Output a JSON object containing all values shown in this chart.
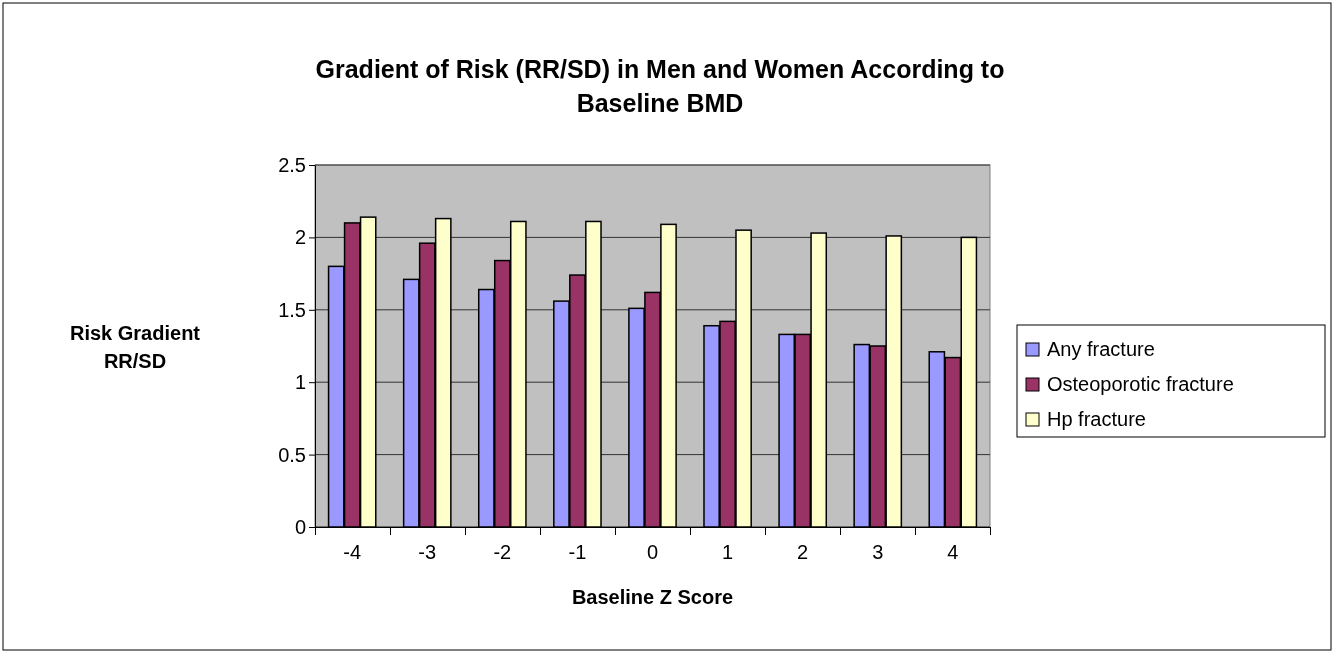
{
  "chart_data": {
    "type": "bar",
    "title": "Gradient of Risk (RR/SD) in Men and Women According to Baseline BMD",
    "xlabel": "Baseline Z Score",
    "ylabel": "Risk Gradient RR/SD",
    "categories": [
      "-4",
      "-3",
      "-2",
      "-1",
      "0",
      "1",
      "2",
      "3",
      "4"
    ],
    "series": [
      {
        "name": "Any fracture",
        "color": "#9999ff",
        "values": [
          1.8,
          1.71,
          1.64,
          1.56,
          1.51,
          1.39,
          1.33,
          1.26,
          1.21
        ]
      },
      {
        "name": "Osteoporotic fracture",
        "color": "#993366",
        "values": [
          2.1,
          1.96,
          1.84,
          1.74,
          1.62,
          1.42,
          1.33,
          1.25,
          1.17
        ]
      },
      {
        "name": "Hp fracture",
        "color": "#ffffcc",
        "values": [
          2.14,
          2.13,
          2.11,
          2.11,
          2.09,
          2.05,
          2.03,
          2.01,
          2.0
        ]
      }
    ],
    "ylim": [
      0,
      2.5
    ],
    "yticks": [
      0,
      0.5,
      1,
      1.5,
      2,
      2.5
    ],
    "grid": "y",
    "legend": "right"
  }
}
